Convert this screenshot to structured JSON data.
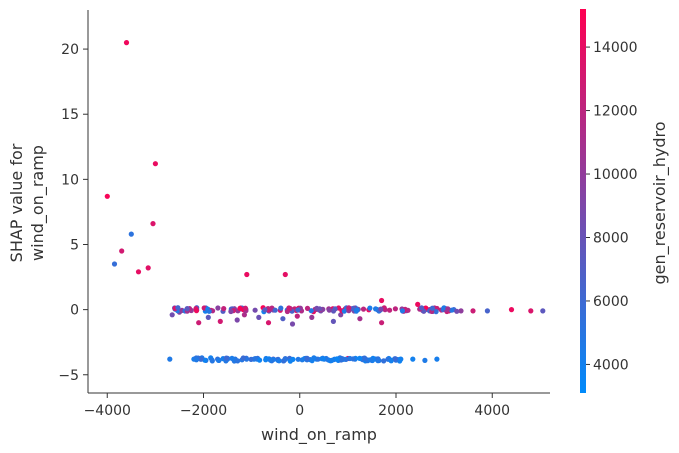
{
  "chart_data": {
    "type": "scatter",
    "xlabel": "wind_on_ramp",
    "ylabel_lines": [
      "SHAP value for",
      "wind_on_ramp"
    ],
    "xlim": [
      -4400,
      5200
    ],
    "ylim": [
      -6.4,
      23
    ],
    "xticks": [
      -4000,
      -2000,
      0,
      2000,
      4000
    ],
    "xtick_labels": [
      "−4000",
      "−2000",
      "0",
      "2000",
      "4000"
    ],
    "yticks": [
      -5,
      0,
      5,
      10,
      15,
      20
    ],
    "ytick_labels": [
      "−5",
      "0",
      "5",
      "10",
      "15",
      "20"
    ],
    "colorbar": {
      "label": "gen_reservoir_hydro",
      "range": [
        3100,
        15200
      ],
      "ticks": [
        4000,
        6000,
        8000,
        10000,
        12000,
        14000
      ],
      "colors": [
        "#008bfb",
        "#ff0052"
      ]
    },
    "points_note": "each point: [wind_on_ramp, SHAP value, gen_reservoir_hydro]",
    "points": [
      [
        -3600,
        20.5,
        14500
      ],
      [
        -3000,
        11.2,
        14200
      ],
      [
        -4000,
        8.7,
        14800
      ],
      [
        -3050,
        6.6,
        13500
      ],
      [
        -3500,
        5.8,
        5200
      ],
      [
        -3700,
        4.5,
        13000
      ],
      [
        -3850,
        3.5,
        5600
      ],
      [
        -3150,
        3.2,
        13800
      ],
      [
        -3350,
        2.9,
        14000
      ],
      [
        -1100,
        2.7,
        14200
      ],
      [
        -300,
        2.7,
        13900
      ],
      [
        1700,
        0.7,
        14100
      ],
      [
        2450,
        0.4,
        14300
      ],
      [
        -2650,
        -0.4,
        8500
      ],
      [
        -2500,
        -0.2,
        9500
      ],
      [
        -2100,
        -1.0,
        12800
      ],
      [
        -1900,
        -0.6,
        7600
      ],
      [
        -1650,
        -0.9,
        13000
      ],
      [
        -1300,
        -0.8,
        9000
      ],
      [
        -1150,
        -0.4,
        11200
      ],
      [
        -850,
        -0.6,
        8200
      ],
      [
        -650,
        -1.0,
        13300
      ],
      [
        -350,
        -0.7,
        7000
      ],
      [
        -150,
        -1.1,
        8800
      ],
      [
        -50,
        -0.5,
        12100
      ],
      [
        250,
        -0.6,
        10400
      ],
      [
        700,
        -0.9,
        7800
      ],
      [
        850,
        -0.4,
        9200
      ],
      [
        1250,
        -0.7,
        11000
      ],
      [
        1700,
        -1.0,
        12600
      ],
      [
        4800,
        -0.1,
        13400
      ],
      [
        5050,
        -0.1,
        7500
      ],
      [
        3100,
        -0.1,
        13100
      ],
      [
        3350,
        -0.1,
        9900
      ],
      [
        3600,
        -0.1,
        12700
      ],
      [
        3900,
        -0.1,
        6500
      ],
      [
        4400,
        0.0,
        14300
      ],
      [
        2700,
        0.0,
        11800
      ],
      [
        3200,
        0.0,
        5900
      ],
      [
        -2700,
        -3.8,
        4600
      ],
      [
        -2200,
        -3.8,
        4200
      ],
      [
        -1950,
        -3.9,
        5000
      ],
      [
        -1850,
        -3.7,
        4000
      ],
      [
        -1500,
        -3.8,
        4400
      ],
      [
        -1200,
        -3.85,
        4800
      ],
      [
        -950,
        -3.8,
        3900
      ],
      [
        -700,
        -3.75,
        4300
      ],
      [
        -450,
        -3.9,
        5300
      ],
      [
        -200,
        -3.8,
        4100
      ],
      [
        50,
        -3.85,
        4500
      ],
      [
        350,
        -3.8,
        4000
      ],
      [
        550,
        -3.75,
        4700
      ],
      [
        800,
        -3.9,
        3800
      ],
      [
        900,
        -3.8,
        4200
      ],
      [
        1150,
        -3.8,
        4600
      ],
      [
        1400,
        -3.85,
        4400
      ],
      [
        1600,
        -3.8,
        4100
      ],
      [
        1850,
        -3.75,
        3900
      ],
      [
        2100,
        -3.8,
        4300
      ],
      [
        2350,
        -3.8,
        4000
      ],
      [
        2600,
        -3.9,
        4500
      ],
      [
        2850,
        -3.8,
        4200
      ],
      [
        1000,
        -3.75,
        13500
      ],
      [
        -550,
        -3.8,
        8500
      ],
      [
        1500,
        -3.9,
        6600
      ]
    ]
  }
}
